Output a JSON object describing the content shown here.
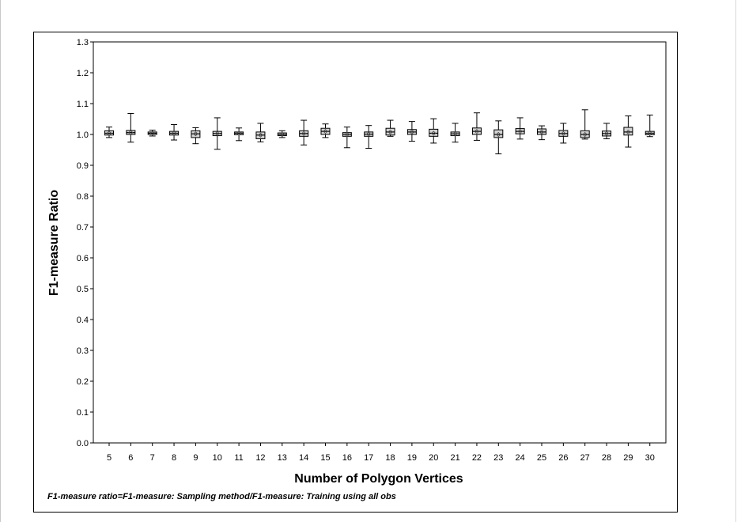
{
  "chart_data": {
    "type": "boxplot",
    "xlabel": "Number of Polygon Vertices",
    "ylabel": "F1-measure Ratio",
    "footnote": "F1-measure ratio=F1-measure: Sampling method/F1-measure: Training using all obs",
    "ylim": [
      0.0,
      1.3
    ],
    "yticks": [
      "0.0",
      "0.1",
      "0.2",
      "0.3",
      "0.4",
      "0.5",
      "0.6",
      "0.7",
      "0.8",
      "0.9",
      "1.0",
      "1.1",
      "1.2",
      "1.3"
    ],
    "grid": false,
    "categories": [
      "5",
      "6",
      "7",
      "8",
      "9",
      "10",
      "11",
      "12",
      "13",
      "14",
      "15",
      "16",
      "17",
      "18",
      "19",
      "20",
      "21",
      "22",
      "23",
      "24",
      "25",
      "26",
      "27",
      "28",
      "29",
      "30"
    ],
    "boxes": [
      {
        "x": "5",
        "min": 0.99,
        "q1": 0.998,
        "median": 1.004,
        "q3": 1.012,
        "max": 1.024
      },
      {
        "x": "6",
        "min": 0.975,
        "q1": 1.0,
        "median": 1.006,
        "q3": 1.013,
        "max": 1.068
      },
      {
        "x": "7",
        "min": 0.995,
        "q1": 1.0,
        "median": 1.004,
        "q3": 1.008,
        "max": 1.014
      },
      {
        "x": "8",
        "min": 0.982,
        "q1": 0.998,
        "median": 1.004,
        "q3": 1.01,
        "max": 1.032
      },
      {
        "x": "9",
        "min": 0.97,
        "q1": 0.99,
        "median": 1.002,
        "q3": 1.012,
        "max": 1.022
      },
      {
        "x": "10",
        "min": 0.952,
        "q1": 0.996,
        "median": 1.003,
        "q3": 1.01,
        "max": 1.054
      },
      {
        "x": "11",
        "min": 0.98,
        "q1": 0.999,
        "median": 1.004,
        "q3": 1.008,
        "max": 1.021
      },
      {
        "x": "12",
        "min": 0.976,
        "q1": 0.986,
        "median": 0.998,
        "q3": 1.008,
        "max": 1.036
      },
      {
        "x": "13",
        "min": 0.99,
        "q1": 0.996,
        "median": 1.0,
        "q3": 1.005,
        "max": 1.012
      },
      {
        "x": "14",
        "min": 0.966,
        "q1": 0.994,
        "median": 1.003,
        "q3": 1.012,
        "max": 1.046
      },
      {
        "x": "15",
        "min": 0.99,
        "q1": 1.0,
        "median": 1.01,
        "q3": 1.02,
        "max": 1.034
      },
      {
        "x": "16",
        "min": 0.957,
        "q1": 0.994,
        "median": 1.0,
        "q3": 1.006,
        "max": 1.024
      },
      {
        "x": "17",
        "min": 0.955,
        "q1": 0.994,
        "median": 1.001,
        "q3": 1.008,
        "max": 1.029
      },
      {
        "x": "18",
        "min": 0.994,
        "q1": 0.998,
        "median": 1.008,
        "q3": 1.02,
        "max": 1.046
      },
      {
        "x": "19",
        "min": 0.978,
        "q1": 1.0,
        "median": 1.008,
        "q3": 1.016,
        "max": 1.042
      },
      {
        "x": "20",
        "min": 0.972,
        "q1": 0.994,
        "median": 1.004,
        "q3": 1.017,
        "max": 1.051
      },
      {
        "x": "21",
        "min": 0.975,
        "q1": 0.996,
        "median": 1.002,
        "q3": 1.008,
        "max": 1.036
      },
      {
        "x": "22",
        "min": 0.981,
        "q1": 1.0,
        "median": 1.01,
        "q3": 1.021,
        "max": 1.07
      },
      {
        "x": "23",
        "min": 0.937,
        "q1": 0.99,
        "median": 1.0,
        "q3": 1.015,
        "max": 1.044
      },
      {
        "x": "24",
        "min": 0.985,
        "q1": 1.002,
        "median": 1.01,
        "q3": 1.019,
        "max": 1.054
      },
      {
        "x": "25",
        "min": 0.983,
        "q1": 1.0,
        "median": 1.008,
        "q3": 1.018,
        "max": 1.028
      },
      {
        "x": "26",
        "min": 0.972,
        "q1": 0.994,
        "median": 1.003,
        "q3": 1.013,
        "max": 1.036
      },
      {
        "x": "27",
        "min": 0.985,
        "q1": 0.99,
        "median": 1.0,
        "q3": 1.012,
        "max": 1.08
      },
      {
        "x": "28",
        "min": 0.986,
        "q1": 0.995,
        "median": 1.003,
        "q3": 1.011,
        "max": 1.036
      },
      {
        "x": "29",
        "min": 0.959,
        "q1": 0.998,
        "median": 1.008,
        "q3": 1.023,
        "max": 1.06
      },
      {
        "x": "30",
        "min": 0.993,
        "q1": 0.999,
        "median": 1.004,
        "q3": 1.01,
        "max": 1.063
      }
    ],
    "box_fill": "#d3d3d3",
    "line_color": "#000000"
  }
}
